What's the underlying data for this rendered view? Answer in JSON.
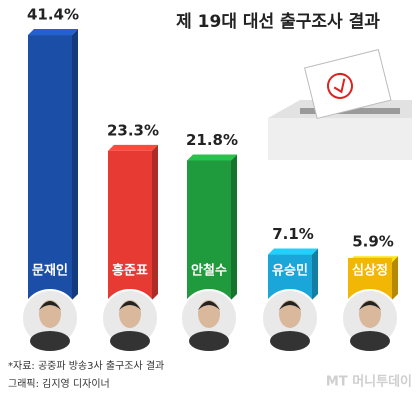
{
  "chart_data": {
    "type": "bar",
    "title": "제 19대 대선 출구조사 결과",
    "categories": [
      "문재인",
      "홍준표",
      "안철수",
      "유승민",
      "심상정"
    ],
    "values": [
      41.4,
      23.3,
      21.8,
      7.1,
      5.9
    ],
    "value_labels": [
      "41.4%",
      "23.3%",
      "21.8%",
      "7.1%",
      "5.9%"
    ],
    "colors": [
      "#1b4ea6",
      "#e63a32",
      "#1f9a3c",
      "#1aa6d8",
      "#f2b705"
    ],
    "source": "*자료: 공중파 방송3사 출구조사 결과",
    "credit": "그래픽: 김지영 디자이너",
    "watermark": "MT 머니투데이"
  }
}
